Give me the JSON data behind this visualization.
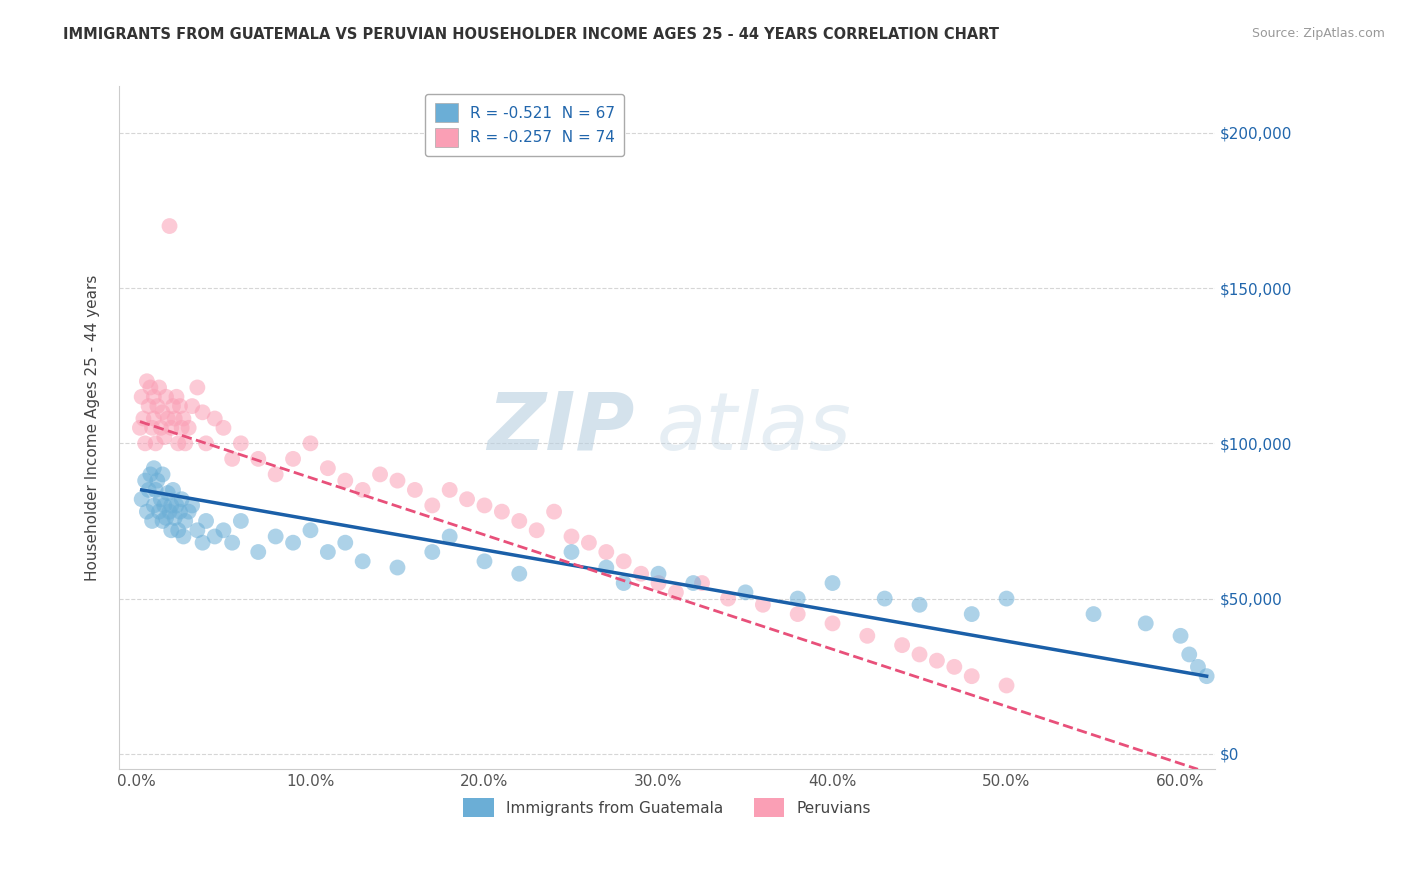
{
  "title": "IMMIGRANTS FROM GUATEMALA VS PERUVIAN HOUSEHOLDER INCOME AGES 25 - 44 YEARS CORRELATION CHART",
  "source": "Source: ZipAtlas.com",
  "ylabel": "Householder Income Ages 25 - 44 years",
  "xlabel_vals": [
    0.0,
    10.0,
    20.0,
    30.0,
    40.0,
    50.0,
    60.0
  ],
  "ytick_vals": [
    0,
    50000,
    100000,
    150000,
    200000
  ],
  "ytick_labels": [
    "$0",
    "$50,000",
    "$100,000",
    "$150,000",
    "$200,000"
  ],
  "xlim": [
    -1.0,
    62.0
  ],
  "ylim": [
    -5000,
    215000
  ],
  "blue_R": -0.521,
  "blue_N": 67,
  "pink_R": -0.257,
  "pink_N": 74,
  "blue_color": "#6baed6",
  "pink_color": "#fa9fb5",
  "blue_line_color": "#1a5fa8",
  "pink_line_color": "#e8507a",
  "watermark_zip": "ZIP",
  "watermark_atlas": "atlas",
  "legend_label_blue": "Immigrants from Guatemala",
  "legend_label_pink": "Peruvians",
  "blue_scatter_x": [
    0.3,
    0.5,
    0.6,
    0.7,
    0.8,
    0.9,
    1.0,
    1.0,
    1.1,
    1.2,
    1.3,
    1.4,
    1.5,
    1.5,
    1.6,
    1.7,
    1.8,
    1.9,
    2.0,
    2.0,
    2.1,
    2.2,
    2.3,
    2.4,
    2.5,
    2.6,
    2.7,
    2.8,
    3.0,
    3.2,
    3.5,
    3.8,
    4.0,
    4.5,
    5.0,
    5.5,
    6.0,
    7.0,
    8.0,
    9.0,
    10.0,
    11.0,
    12.0,
    13.0,
    15.0,
    17.0,
    18.0,
    20.0,
    22.0,
    25.0,
    27.0,
    28.0,
    30.0,
    32.0,
    35.0,
    38.0,
    40.0,
    43.0,
    45.0,
    48.0,
    50.0,
    55.0,
    58.0,
    60.0,
    60.5,
    61.0,
    61.5
  ],
  "blue_scatter_y": [
    82000,
    88000,
    78000,
    85000,
    90000,
    75000,
    80000,
    92000,
    85000,
    88000,
    78000,
    82000,
    75000,
    90000,
    80000,
    76000,
    84000,
    78000,
    80000,
    72000,
    85000,
    76000,
    80000,
    72000,
    78000,
    82000,
    70000,
    75000,
    78000,
    80000,
    72000,
    68000,
    75000,
    70000,
    72000,
    68000,
    75000,
    65000,
    70000,
    68000,
    72000,
    65000,
    68000,
    62000,
    60000,
    65000,
    70000,
    62000,
    58000,
    65000,
    60000,
    55000,
    58000,
    55000,
    52000,
    50000,
    55000,
    50000,
    48000,
    45000,
    50000,
    45000,
    42000,
    38000,
    32000,
    28000,
    25000
  ],
  "pink_scatter_x": [
    0.2,
    0.3,
    0.4,
    0.5,
    0.6,
    0.7,
    0.8,
    0.9,
    1.0,
    1.0,
    1.1,
    1.2,
    1.3,
    1.4,
    1.5,
    1.6,
    1.7,
    1.8,
    1.9,
    2.0,
    2.1,
    2.2,
    2.3,
    2.4,
    2.5,
    2.6,
    2.7,
    2.8,
    3.0,
    3.2,
    3.5,
    3.8,
    4.0,
    4.5,
    5.0,
    5.5,
    6.0,
    7.0,
    8.0,
    9.0,
    10.0,
    11.0,
    12.0,
    13.0,
    14.0,
    15.0,
    16.0,
    17.0,
    18.0,
    19.0,
    20.0,
    21.0,
    22.0,
    23.0,
    24.0,
    25.0,
    26.0,
    27.0,
    28.0,
    29.0,
    30.0,
    31.0,
    32.5,
    34.0,
    36.0,
    38.0,
    40.0,
    42.0,
    44.0,
    45.0,
    46.0,
    47.0,
    48.0,
    50.0
  ],
  "pink_scatter_y": [
    105000,
    115000,
    108000,
    100000,
    120000,
    112000,
    118000,
    105000,
    108000,
    115000,
    100000,
    112000,
    118000,
    105000,
    110000,
    102000,
    115000,
    108000,
    170000,
    105000,
    112000,
    108000,
    115000,
    100000,
    112000,
    105000,
    108000,
    100000,
    105000,
    112000,
    118000,
    110000,
    100000,
    108000,
    105000,
    95000,
    100000,
    95000,
    90000,
    95000,
    100000,
    92000,
    88000,
    85000,
    90000,
    88000,
    85000,
    80000,
    85000,
    82000,
    80000,
    78000,
    75000,
    72000,
    78000,
    70000,
    68000,
    65000,
    62000,
    58000,
    55000,
    52000,
    55000,
    50000,
    48000,
    45000,
    42000,
    38000,
    35000,
    32000,
    30000,
    28000,
    25000,
    22000
  ],
  "blue_line_x0": 0.3,
  "blue_line_x1": 61.5,
  "blue_line_y0": 85000,
  "blue_line_y1": 25000,
  "pink_line_x0": 0.2,
  "pink_line_x1": 61.0,
  "pink_line_y0": 107000,
  "pink_line_y1": -5000
}
